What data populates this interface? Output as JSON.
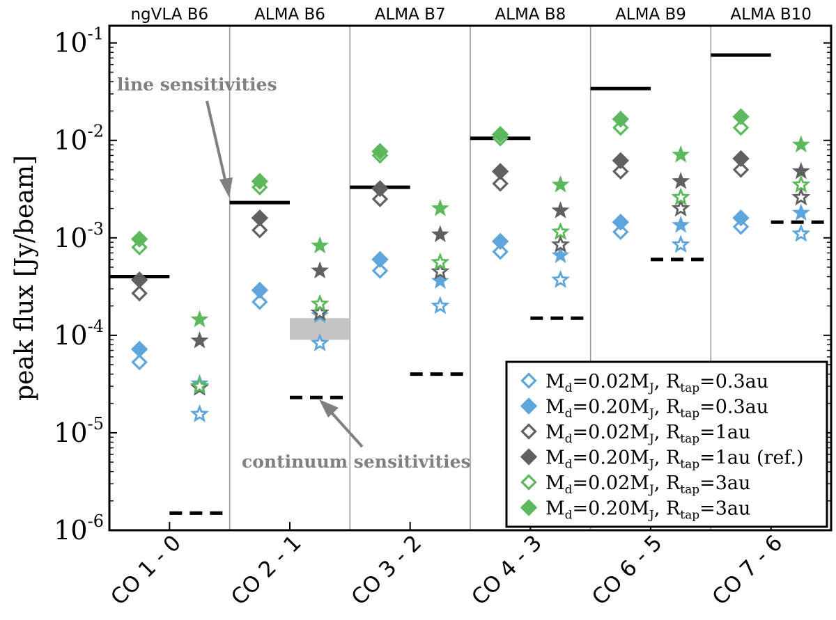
{
  "chart_data": {
    "type": "scatter",
    "yscale": "log",
    "ylim": [
      1e-06,
      0.15
    ],
    "ylabel": "peak flux [Jy/beam]",
    "bands": [
      "ngVLA B6",
      "ALMA B6",
      "ALMA B7",
      "ALMA B8",
      "ALMA B9",
      "ALMA B10"
    ],
    "transitions": [
      "CO 1 - 0",
      "CO 2 - 1",
      "CO 3 - 2",
      "CO 4 - 3",
      "CO 6 - 5",
      "CO 7 - 6"
    ],
    "y_ticks": [
      {
        "value": 1e-06,
        "base": "10",
        "exp": "-6"
      },
      {
        "value": 1e-05,
        "base": "10",
        "exp": "-5"
      },
      {
        "value": 0.0001,
        "base": "10",
        "exp": "-4"
      },
      {
        "value": 0.001,
        "base": "10",
        "exp": "-3"
      },
      {
        "value": 0.01,
        "base": "10",
        "exp": "-2"
      },
      {
        "value": 0.1,
        "base": "10",
        "exp": "-1"
      }
    ],
    "line_sensitivity": [
      0.0004,
      0.0023,
      0.0033,
      0.0105,
      0.034,
      0.075
    ],
    "continuum_sensitivity": [
      1.5e-06,
      2.3e-05,
      4e-05,
      0.00015,
      0.0006,
      0.00145
    ],
    "continuum_range_band2": [
      9e-05,
      0.00015
    ],
    "series": [
      {
        "name": "Md=0.02MJ, Rtap=0.3au",
        "color": "#5DA5DA",
        "filled": false,
        "line_peak": [
          5.3e-05,
          0.00022,
          0.00046,
          0.00072,
          0.00115,
          0.0013
        ],
        "cont_peak": [
          1.55e-05,
          8.3e-05,
          0.0002,
          0.00037,
          0.00085,
          0.0011
        ]
      },
      {
        "name": "Md=0.20MJ, Rtap=0.3au",
        "color": "#5DA5DA",
        "filled": true,
        "line_peak": [
          7.2e-05,
          0.00029,
          0.0006,
          0.00092,
          0.00145,
          0.0016
        ],
        "cont_peak": [
          3.2e-05,
          0.00016,
          0.00036,
          0.00066,
          0.00135,
          0.0018
        ]
      },
      {
        "name": "Md=0.02MJ, Rtap=1au",
        "color": "#606060",
        "filled": false,
        "line_peak": [
          0.00027,
          0.0012,
          0.0025,
          0.0036,
          0.0048,
          0.005
        ],
        "cont_peak": [
          2.9e-05,
          0.00017,
          0.00045,
          0.00085,
          0.002,
          0.0026
        ]
      },
      {
        "name": "Md=0.20MJ, Rtap=1au (ref.)",
        "color": "#606060",
        "filled": true,
        "line_peak": [
          0.00037,
          0.0016,
          0.0032,
          0.0048,
          0.0062,
          0.0065
        ],
        "cont_peak": [
          8.8e-05,
          0.00046,
          0.00108,
          0.0019,
          0.0038,
          0.0048
        ]
      },
      {
        "name": "Md=0.02MJ, Rtap=3au",
        "color": "#5CB85C",
        "filled": false,
        "line_peak": [
          0.0008,
          0.0033,
          0.007,
          0.0105,
          0.0135,
          0.0135
        ],
        "cont_peak": [
          3e-05,
          0.00021,
          0.00056,
          0.00115,
          0.0026,
          0.0035
        ]
      },
      {
        "name": "Md=0.20MJ, Rtap=3au",
        "color": "#5CB85C",
        "filled": true,
        "line_peak": [
          0.00097,
          0.0038,
          0.0077,
          0.0115,
          0.0165,
          0.0175
        ],
        "cont_peak": [
          0.000145,
          0.00083,
          0.002,
          0.0035,
          0.0071,
          0.009
        ]
      }
    ],
    "legend": {
      "placement": "bottom-right",
      "entries": [
        {
          "md": "0.02",
          "rtap": "0.3au",
          "suffix": ""
        },
        {
          "md": "0.20",
          "rtap": "0.3au",
          "suffix": ""
        },
        {
          "md": "0.02",
          "rtap": "1au",
          "suffix": ""
        },
        {
          "md": "0.20",
          "rtap": "1au",
          "suffix": " (ref.)"
        },
        {
          "md": "0.02",
          "rtap": "3au",
          "suffix": ""
        },
        {
          "md": "0.20",
          "rtap": "3au",
          "suffix": ""
        }
      ]
    },
    "annotations": {
      "line": "line sensitivities",
      "continuum": "continuum sensitivities"
    }
  }
}
